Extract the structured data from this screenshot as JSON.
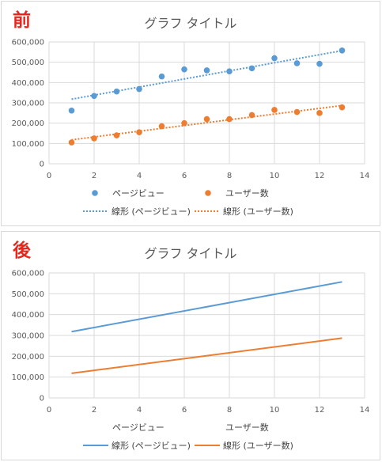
{
  "labels": {
    "before": "前",
    "after": "後"
  },
  "colors": {
    "pageviews": "#5b9bd5",
    "users": "#ed7d31",
    "grid": "#d9d9d9",
    "badge": "#e8261c"
  },
  "chart_data": [
    {
      "type": "scatter",
      "title": "グラフ タイトル",
      "x": [
        1,
        2,
        3,
        4,
        5,
        6,
        7,
        8,
        9,
        10,
        11,
        12,
        13
      ],
      "xlim": [
        0,
        14
      ],
      "ylim": [
        0,
        600000
      ],
      "xticks": [
        0,
        2,
        4,
        6,
        8,
        10,
        12,
        14
      ],
      "yticks": [
        0,
        100000,
        200000,
        300000,
        400000,
        500000,
        600000
      ],
      "ytick_labels": [
        "0",
        "100,000",
        "200,000",
        "300,000",
        "400,000",
        "500,000",
        "600,000"
      ],
      "grid": true,
      "legend_position": "bottom",
      "series": [
        {
          "name": "ページビュー",
          "values": [
            262000,
            334000,
            356000,
            368000,
            430000,
            465000,
            460000,
            455000,
            470000,
            520000,
            495000,
            492000,
            558000
          ]
        },
        {
          "name": "ユーザー数",
          "values": [
            105000,
            125000,
            140000,
            155000,
            185000,
            200000,
            220000,
            220000,
            240000,
            265000,
            255000,
            250000,
            278000
          ]
        }
      ],
      "trendlines": [
        {
          "name": "線形 (ページビュー)",
          "style": "dotted",
          "start": [
            1,
            318000
          ],
          "end": [
            13,
            557000
          ]
        },
        {
          "name": "線形 (ユーザー数)",
          "style": "dotted",
          "start": [
            1,
            118000
          ],
          "end": [
            13,
            287000
          ]
        }
      ]
    },
    {
      "type": "line",
      "title": "グラフ タイトル",
      "xlim": [
        0,
        14
      ],
      "ylim": [
        0,
        600000
      ],
      "xticks": [
        0,
        2,
        4,
        6,
        8,
        10,
        12,
        14
      ],
      "yticks": [
        0,
        100000,
        200000,
        300000,
        400000,
        500000,
        600000
      ],
      "ytick_labels": [
        "0",
        "100,000",
        "200,000",
        "300,000",
        "400,000",
        "500,000",
        "600,000"
      ],
      "grid": true,
      "legend_position": "bottom",
      "series_names": [
        "ページビュー",
        "ユーザー数"
      ],
      "trendlines": [
        {
          "name": "線形 (ページビュー)",
          "style": "solid",
          "start": [
            1,
            318000
          ],
          "end": [
            13,
            557000
          ]
        },
        {
          "name": "線形 (ユーザー数)",
          "style": "solid",
          "start": [
            1,
            118000
          ],
          "end": [
            13,
            287000
          ]
        }
      ]
    }
  ]
}
